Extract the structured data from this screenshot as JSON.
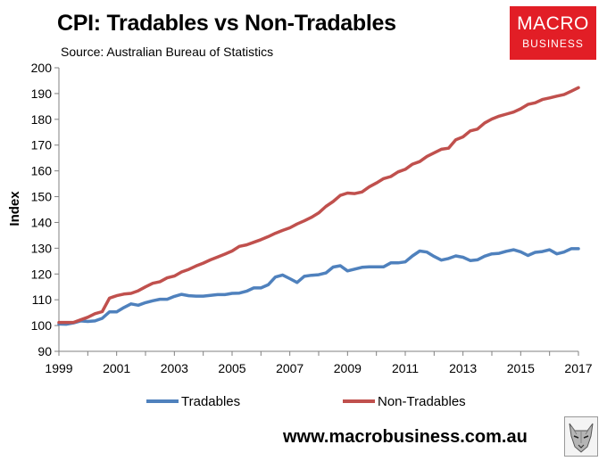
{
  "header": {
    "title": "CPI: Tradables vs Non-Tradables",
    "subtitle": "Source: Australian Bureau of Statistics"
  },
  "logo": {
    "line1": "MACRO",
    "line2": "BUSINESS"
  },
  "footer": {
    "url": "www.macrobusiness.com.au"
  },
  "colors": {
    "tradables": "#4f81bd",
    "non_tradables": "#c0504d",
    "axis": "#808080",
    "logo_bg": "#e21e26"
  },
  "chart_data": {
    "type": "line",
    "title": "CPI: Tradables vs Non-Tradables",
    "xlabel": "",
    "ylabel": "Index",
    "ylim": [
      90,
      200
    ],
    "yticks": [
      90,
      100,
      110,
      120,
      130,
      140,
      150,
      160,
      170,
      180,
      190,
      200
    ],
    "xlim": [
      1999,
      2017
    ],
    "xticks": [
      "1999",
      "2001",
      "2003",
      "2005",
      "2007",
      "2009",
      "2011",
      "2013",
      "2015",
      "2017"
    ],
    "grid": false,
    "legend": "bottom",
    "x": [
      1999.0,
      1999.25,
      1999.5,
      1999.75,
      2000.0,
      2000.25,
      2000.5,
      2000.75,
      2001.0,
      2001.25,
      2001.5,
      2001.75,
      2002.0,
      2002.25,
      2002.5,
      2002.75,
      2003.0,
      2003.25,
      2003.5,
      2003.75,
      2004.0,
      2004.25,
      2004.5,
      2004.75,
      2005.0,
      2005.25,
      2005.5,
      2005.75,
      2006.0,
      2006.25,
      2006.5,
      2006.75,
      2007.0,
      2007.25,
      2007.5,
      2007.75,
      2008.0,
      2008.25,
      2008.5,
      2008.75,
      2009.0,
      2009.25,
      2009.5,
      2009.75,
      2010.0,
      2010.25,
      2010.5,
      2010.75,
      2011.0,
      2011.25,
      2011.5,
      2011.75,
      2012.0,
      2012.25,
      2012.5,
      2012.75,
      2013.0,
      2013.25,
      2013.5,
      2013.75,
      2014.0,
      2014.25,
      2014.5,
      2014.75,
      2015.0,
      2015.25,
      2015.5,
      2015.75,
      2016.0,
      2016.25,
      2016.5,
      2016.75,
      2017.0
    ],
    "series": [
      {
        "name": "Tradables",
        "values": [
          100.6,
          100.5,
          101.0,
          101.8,
          101.6,
          101.8,
          102.8,
          105.3,
          105.3,
          107.0,
          108.4,
          107.9,
          108.9,
          109.6,
          110.2,
          110.2,
          111.3,
          112.1,
          111.6,
          111.4,
          111.4,
          111.7,
          112.0,
          112.0,
          112.5,
          112.6,
          113.3,
          114.6,
          114.6,
          115.8,
          118.8,
          119.6,
          118.2,
          116.7,
          119.1,
          119.5,
          119.7,
          120.4,
          122.7,
          123.2,
          121.2,
          121.9,
          122.6,
          122.8,
          122.8,
          122.8,
          124.3,
          124.3,
          124.7,
          127.0,
          128.9,
          128.5,
          126.8,
          125.4,
          126.0,
          127.0,
          126.5,
          125.2,
          125.5,
          126.9,
          127.8,
          128.0,
          128.8,
          129.4,
          128.6,
          127.2,
          128.4,
          128.7,
          129.4,
          127.8,
          128.5,
          129.8,
          129.8
        ]
      },
      {
        "name": "Non-Tradables",
        "values": [
          101.2,
          101.2,
          101.2,
          102.2,
          103.2,
          104.6,
          105.4,
          110.6,
          111.6,
          112.2,
          112.5,
          113.5,
          115.0,
          116.4,
          117.0,
          118.5,
          119.2,
          120.8,
          121.8,
          123.1,
          124.2,
          125.5,
          126.6,
          127.7,
          128.9,
          130.7,
          131.3,
          132.3,
          133.3,
          134.5,
          135.8,
          136.9,
          137.9,
          139.4,
          140.6,
          142.0,
          143.7,
          146.2,
          148.1,
          150.5,
          151.4,
          151.2,
          151.8,
          153.8,
          155.3,
          157.0,
          157.8,
          159.6,
          160.6,
          162.6,
          163.6,
          165.6,
          167.0,
          168.4,
          168.8,
          172.1,
          173.2,
          175.5,
          176.2,
          178.6,
          180.1,
          181.2,
          182.0,
          182.8,
          184.1,
          185.8,
          186.4,
          187.7,
          188.3,
          189.0,
          189.6,
          190.9,
          192.3
        ]
      }
    ]
  }
}
